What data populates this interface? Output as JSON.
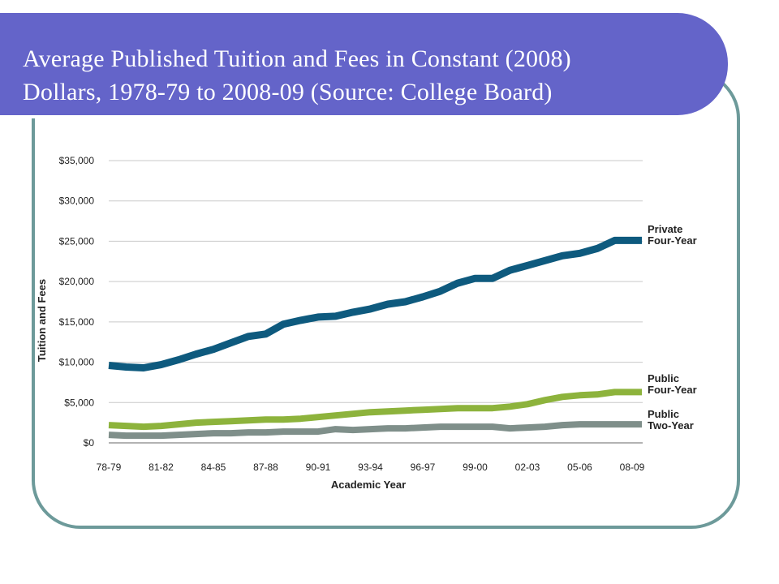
{
  "slide": {
    "title_line1": "Average Published Tuition and Fees in Constant (2008)",
    "title_line2": "Dollars, 1978-79 to 2008-09 (Source: College Board)"
  },
  "chart_data": {
    "type": "line",
    "title": "Average Published Tuition and Fees in Constant (2008) Dollars, 1978-79 to 2008-09 (Source: College Board)",
    "xlabel": "Academic Year",
    "ylabel": "Tuition and Fees",
    "ylim": [
      0,
      35000
    ],
    "yticks": [
      0,
      5000,
      10000,
      15000,
      20000,
      25000,
      30000,
      35000
    ],
    "ytick_labels": [
      "$0",
      "$5,000",
      "$10,000",
      "$15,000",
      "$20,000",
      "$25,000",
      "$30,000",
      "$35,000"
    ],
    "x": [
      "78-79",
      "79-80",
      "80-81",
      "81-82",
      "82-83",
      "83-84",
      "84-85",
      "85-86",
      "86-87",
      "87-88",
      "88-89",
      "89-90",
      "90-91",
      "91-92",
      "92-93",
      "93-94",
      "94-95",
      "95-96",
      "96-97",
      "97-98",
      "98-99",
      "99-00",
      "00-01",
      "01-02",
      "02-03",
      "03-04",
      "04-05",
      "05-06",
      "06-07",
      "07-08",
      "08-09"
    ],
    "xtick_labels": [
      "78-79",
      "81-82",
      "84-85",
      "87-88",
      "90-91",
      "93-94",
      "96-97",
      "99-00",
      "02-03",
      "05-06",
      "08-09"
    ],
    "grid": true,
    "series": [
      {
        "name": "Private Four-Year",
        "label_line1": "Private",
        "label_line2": "Four-Year",
        "color": "#0e5a7e",
        "values": [
          9600,
          9400,
          9300,
          9700,
          10300,
          11000,
          11600,
          12400,
          13200,
          13500,
          14700,
          15200,
          15600,
          15700,
          16200,
          16600,
          17200,
          17500,
          18100,
          18800,
          19800,
          20400,
          20400,
          21400,
          22000,
          22600,
          23200,
          23500,
          24100,
          25100,
          25100
        ]
      },
      {
        "name": "Public Four-Year",
        "label_line1": "Public",
        "label_line2": "Four-Year",
        "color": "#8db33c",
        "values": [
          2200,
          2100,
          2000,
          2100,
          2300,
          2500,
          2600,
          2700,
          2800,
          2900,
          2900,
          3000,
          3200,
          3400,
          3600,
          3800,
          3900,
          4000,
          4100,
          4200,
          4300,
          4300,
          4300,
          4500,
          4800,
          5300,
          5700,
          5900,
          6000,
          6300,
          6300
        ]
      },
      {
        "name": "Public Two-Year",
        "label_line1": "Public",
        "label_line2": "Two-Year",
        "color": "#7f8f8a",
        "values": [
          1000,
          900,
          900,
          900,
          1000,
          1100,
          1200,
          1200,
          1300,
          1300,
          1400,
          1400,
          1400,
          1700,
          1600,
          1700,
          1800,
          1800,
          1900,
          2000,
          2000,
          2000,
          2000,
          1800,
          1900,
          2000,
          2200,
          2300,
          2300,
          2300,
          2300
        ]
      }
    ],
    "legend": "right-end labels"
  }
}
